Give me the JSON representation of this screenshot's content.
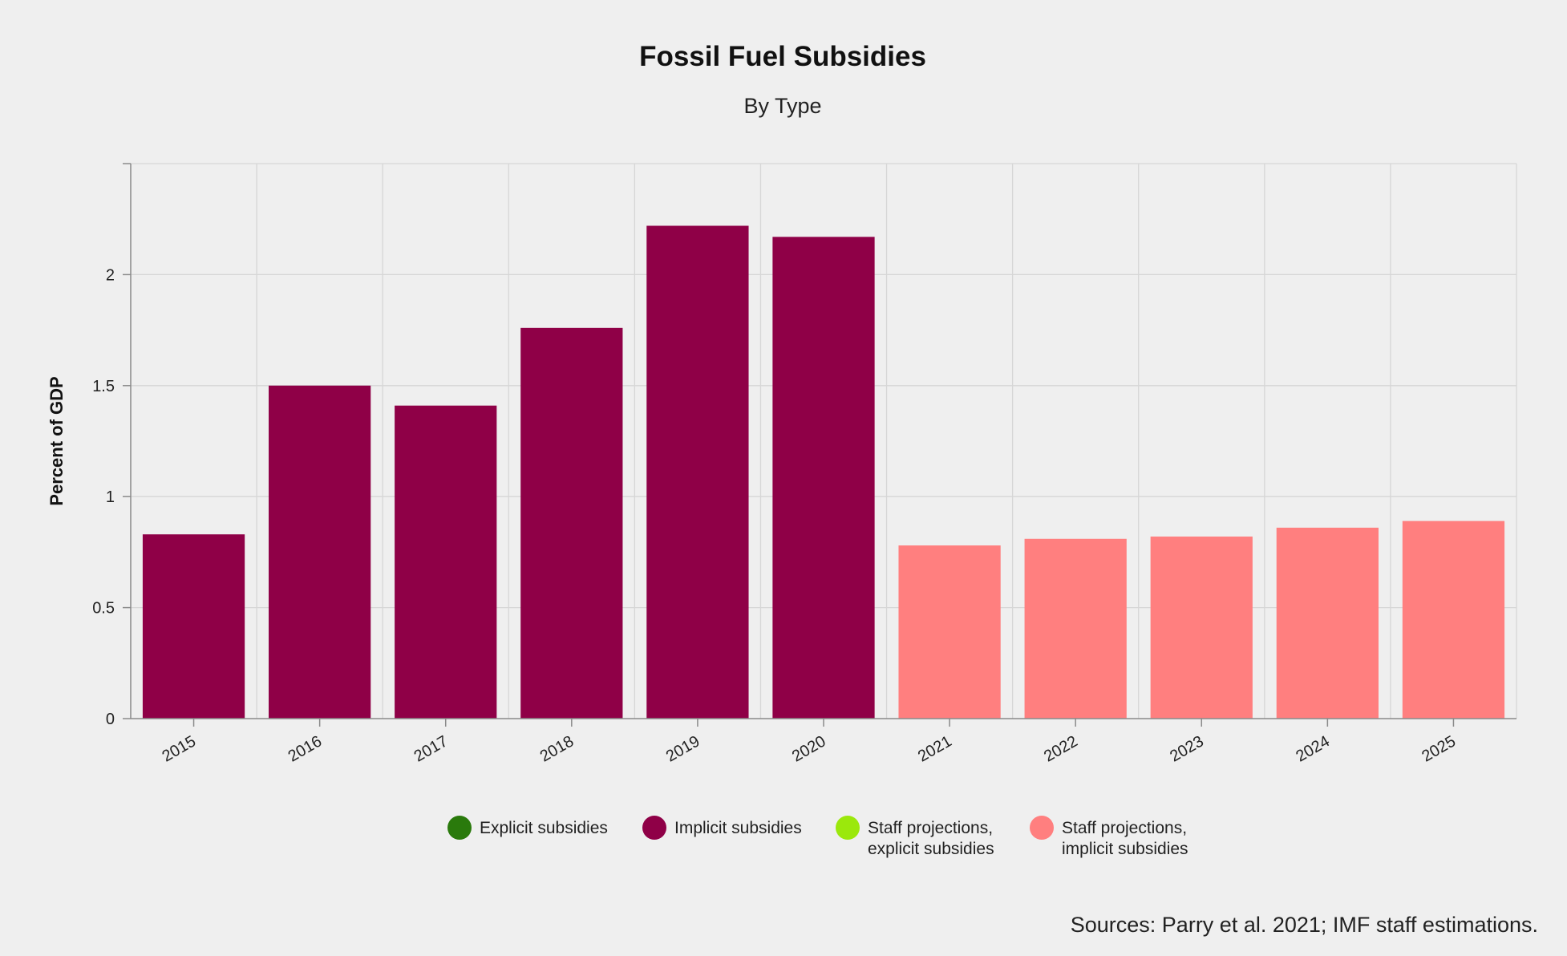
{
  "chart_data": {
    "type": "bar",
    "title": "Fossil Fuel Subsidies",
    "subtitle": "By Type",
    "xlabel": "",
    "ylabel": "Percent of GDP",
    "ylim": [
      0,
      2.5
    ],
    "yticks": [
      0,
      0.5,
      1,
      1.5,
      2
    ],
    "ytick_labels": [
      "0",
      "0.5",
      "1",
      "1.5",
      "2"
    ],
    "grid": true,
    "legend_position": "bottom",
    "categories": [
      "2015",
      "2016",
      "2017",
      "2018",
      "2019",
      "2020",
      "2021",
      "2022",
      "2023",
      "2024",
      "2025"
    ],
    "series": [
      {
        "name": "Explicit subsidies",
        "color": "#2a7a0c",
        "values": [
          null,
          null,
          null,
          null,
          null,
          null,
          null,
          null,
          null,
          null,
          null
        ]
      },
      {
        "name": "Implicit subsidies",
        "color": "#8f0047",
        "values": [
          0.83,
          1.5,
          1.41,
          1.76,
          2.22,
          2.17,
          null,
          null,
          null,
          null,
          null
        ]
      },
      {
        "name": "Staff projections,\nexplicit subsidies",
        "color": "#9be80c",
        "values": [
          null,
          null,
          null,
          null,
          null,
          null,
          null,
          null,
          null,
          null,
          null
        ]
      },
      {
        "name": "Staff projections,\nimplicit subsidies",
        "color": "#ff7f7f",
        "values": [
          null,
          null,
          null,
          null,
          null,
          null,
          0.78,
          0.81,
          0.82,
          0.86,
          0.89
        ]
      }
    ],
    "source": "Sources: Parry et al. 2021; IMF staff estimations."
  },
  "colors": {
    "background": "#efefef",
    "grid": "#d6d6d6",
    "axis": "#8a8a8a"
  }
}
